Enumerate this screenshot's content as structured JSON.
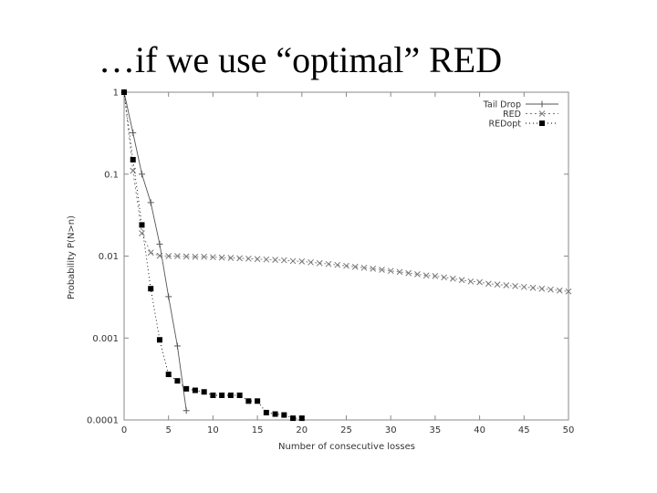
{
  "slide": {
    "title": "…if we use “optimal” RED"
  },
  "chart_data": {
    "type": "line",
    "title": "",
    "xlabel": "Number of consecutive losses",
    "ylabel": "Probability P(N>n)",
    "xlim": [
      0,
      50
    ],
    "ylim": [
      0.0001,
      1
    ],
    "yscale": "log",
    "x_ticks": [
      "0",
      "5",
      "10",
      "15",
      "20",
      "25",
      "30",
      "35",
      "40",
      "45",
      "50"
    ],
    "y_ticks": [
      "1",
      "0.1",
      "0.01",
      "0.001",
      "0.0001"
    ],
    "grid": false,
    "legend_position": "top-right",
    "series": [
      {
        "name": "Tail Drop",
        "marker": "plus",
        "dash": "",
        "color": "#555555",
        "x": [
          0,
          1,
          2,
          3,
          4,
          5,
          6,
          7
        ],
        "y": [
          1,
          0.32,
          0.1,
          0.045,
          0.014,
          0.0032,
          0.0008,
          0.00013
        ]
      },
      {
        "name": "RED",
        "marker": "x",
        "dash": "2,3",
        "color": "#777777",
        "x": [
          0,
          1,
          2,
          3,
          4,
          5,
          6,
          7,
          8,
          9,
          10,
          11,
          12,
          13,
          14,
          15,
          16,
          17,
          18,
          19,
          20,
          21,
          22,
          23,
          24,
          25,
          26,
          27,
          28,
          29,
          30,
          31,
          32,
          33,
          34,
          35,
          36,
          37,
          38,
          39,
          40,
          41,
          42,
          43,
          44,
          45,
          46,
          47,
          48,
          49,
          50
        ],
        "y": [
          1,
          0.11,
          0.019,
          0.011,
          0.0101,
          0.01,
          0.01,
          0.0099,
          0.0098,
          0.0098,
          0.0097,
          0.0096,
          0.0095,
          0.0094,
          0.0093,
          0.0092,
          0.0091,
          0.009,
          0.0089,
          0.0087,
          0.0086,
          0.0084,
          0.0082,
          0.008,
          0.0078,
          0.0076,
          0.0074,
          0.0072,
          0.007,
          0.0068,
          0.0066,
          0.0064,
          0.0062,
          0.006,
          0.0058,
          0.0057,
          0.0055,
          0.0053,
          0.0051,
          0.0049,
          0.0048,
          0.0046,
          0.0045,
          0.0044,
          0.0043,
          0.0042,
          0.0041,
          0.004,
          0.0039,
          0.0038,
          0.0037
        ]
      },
      {
        "name": "REDopt",
        "marker": "square",
        "dash": "1,3",
        "color": "#000000",
        "x": [
          0,
          1,
          2,
          3,
          4,
          5,
          6,
          7,
          8,
          9,
          10,
          11,
          12,
          13,
          14,
          15,
          16,
          17,
          18,
          19,
          20
        ],
        "y": [
          1,
          0.15,
          0.024,
          0.004,
          0.00095,
          0.00036,
          0.0003,
          0.00024,
          0.00023,
          0.00022,
          0.0002,
          0.0002,
          0.0002,
          0.0002,
          0.00017,
          0.00017,
          0.000123,
          0.000118,
          0.000115,
          0.000105,
          0.000105
        ]
      }
    ]
  }
}
